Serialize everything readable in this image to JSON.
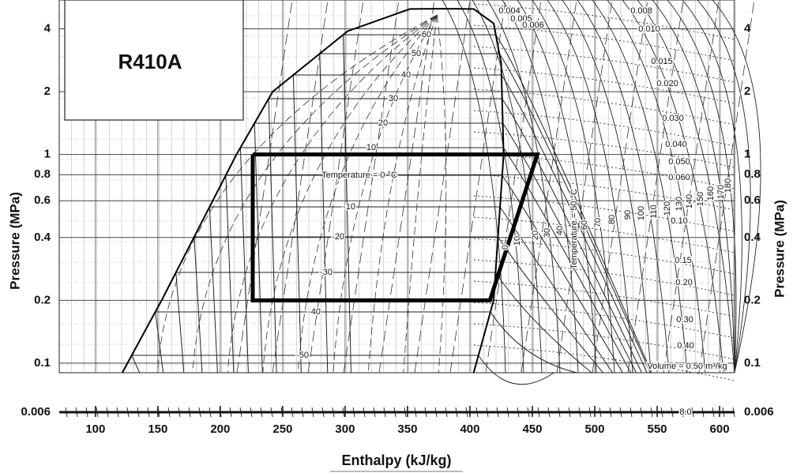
{
  "chart_data": {
    "type": "line",
    "title": "R410A",
    "x_label": "Enthalpy  (kJ/kg)",
    "y_label": "Pressure  (MPa)",
    "log_y": true,
    "grid": true,
    "xlim": [
      71,
      612
    ],
    "xticks": [
      100,
      150,
      200,
      250,
      300,
      350,
      400,
      450,
      500,
      550,
      600
    ],
    "ylim": [
      0.09,
      5.5
    ],
    "yticks": [
      0.1,
      0.2,
      0.4,
      0.6,
      0.8,
      1,
      2,
      4
    ],
    "lower_yticks": [
      0.006
    ],
    "series": [
      {
        "color": "#000000",
        "x": [
          121.5,
          153,
          213,
          242,
          302,
          352,
          380,
          403,
          419,
          425,
          427,
          419,
          403
        ],
        "values": [
          0.09,
          0.2,
          1,
          2,
          3.9,
          4.98,
          5,
          4.98,
          4.25,
          2.75,
          1,
          0.2,
          0.09
        ]
      },
      {
        "color": "#000000",
        "x": [
          226,
          454,
          416,
          226,
          226
        ],
        "values": [
          1,
          1,
          0.2,
          0.2,
          1
        ]
      }
    ],
    "annotations": [
      "60",
      "50",
      "40",
      "30",
      "20",
      "10",
      "Temperature = 0 °C",
      "-10",
      "-20",
      "-30",
      "-40",
      "-50",
      "0",
      "10",
      "20",
      "30",
      "40",
      "Temperature = 50 °C",
      "60",
      "70",
      "80",
      "90",
      "100",
      "110",
      "120",
      "130",
      "140",
      "150",
      "160",
      "170",
      "180",
      "0.004",
      "0.005",
      "0.006",
      "0.008",
      "0.010",
      "0.015",
      "0.020",
      "0.030",
      "0.040",
      "0.050",
      "0.060",
      "0.10",
      "0.15",
      "0.20",
      "0.30",
      "0.40",
      "Volume = 0.50 m³/kg",
      "8.0"
    ]
  }
}
